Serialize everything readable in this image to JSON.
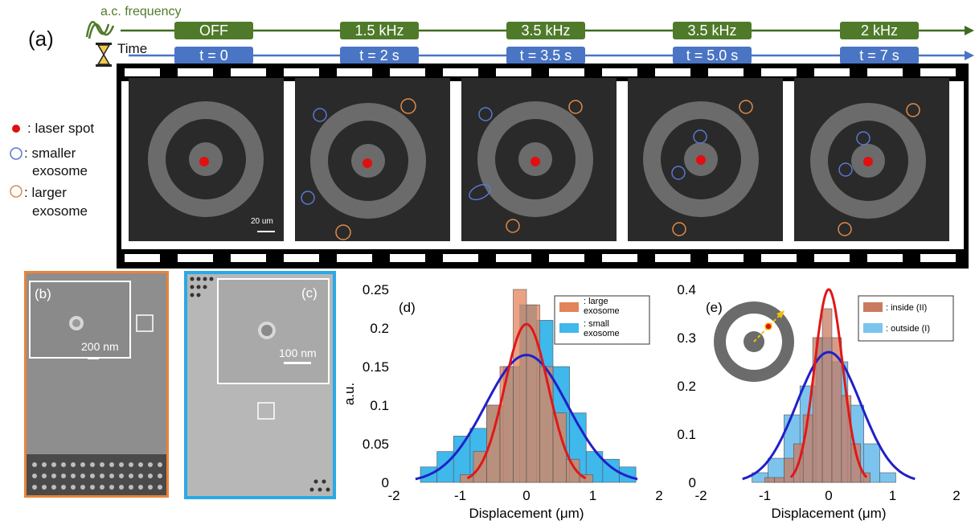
{
  "panel_a": {
    "label": "(a)",
    "freq_label": "a.c. frequency",
    "time_label": "Time",
    "freq_values": [
      "OFF",
      "1.5 kHz",
      "3.5 kHz",
      "3.5 kHz",
      "2 kHz"
    ],
    "time_values": [
      "t = 0",
      "t = 2 s",
      "t = 3.5 s",
      "t = 5.0 s",
      "t = 7 s"
    ],
    "scale_bar": "20 um",
    "legend": {
      "laser": ": laser spot",
      "small_1": ": smaller",
      "small_2": "exosome",
      "large_1": ": larger",
      "large_2": "exosome"
    },
    "colors": {
      "green": "#4f7a2a",
      "blue": "#4a75c4",
      "laser": "#e01010",
      "small": "#5a79d0",
      "large": "#e08b4a"
    }
  },
  "panel_b": {
    "label": "(b)",
    "scale": "200 nm",
    "border_color": "#e8843a"
  },
  "panel_c": {
    "label": "(c)",
    "scale": "100 nm",
    "border_color": "#2aa9e6"
  },
  "chart_data": [
    {
      "type": "bar",
      "panel": "(d)",
      "xlabel": "Displacement (μm)",
      "ylabel": "a.u.",
      "xlim": [
        -2,
        2
      ],
      "ylim": [
        0,
        0.25
      ],
      "xticks": [
        "-2",
        "-1",
        "0",
        "1",
        "2"
      ],
      "yticks": [
        "0",
        "0.05",
        "0.1",
        "0.15",
        "0.2",
        "0.25"
      ],
      "legend_position": "top-right",
      "series": [
        {
          "name": ": small exosome",
          "color": "#3fb8ec",
          "bin_edges": [
            -1.6,
            -1.35,
            -1.1,
            -0.85,
            -0.6,
            -0.35,
            -0.1,
            0.15,
            0.4,
            0.65,
            0.9,
            1.15,
            1.4,
            1.65
          ],
          "values": [
            0.02,
            0.04,
            0.06,
            0.07,
            0.1,
            0.15,
            0.23,
            0.21,
            0.15,
            0.09,
            0.04,
            0.03,
            0.02
          ]
        },
        {
          "name": ": large exosome",
          "color": "#e3835a",
          "bin_edges": [
            -1.0,
            -0.8,
            -0.6,
            -0.4,
            -0.2,
            0,
            0.2,
            0.4,
            0.6,
            0.8,
            1.0
          ],
          "values": [
            0.01,
            0.04,
            0.1,
            0.15,
            0.25,
            0.23,
            0.15,
            0.09,
            0.03,
            0.01
          ]
        },
        {
          "name": "fit small",
          "color": "#2020c8",
          "type": "gaussian",
          "amplitude": 0.165,
          "mu": 0,
          "sigma": 0.62
        },
        {
          "name": "fit large",
          "color": "#e01818",
          "type": "gaussian",
          "amplitude": 0.205,
          "mu": 0,
          "sigma": 0.33
        }
      ],
      "legend": [
        ": large exosome",
        ": small exosome"
      ]
    },
    {
      "type": "bar",
      "panel": "(e)",
      "xlabel": "Displacement (μm)",
      "ylabel": "a.u.",
      "xlim": [
        -2,
        2
      ],
      "ylim": [
        0,
        0.4
      ],
      "xticks": [
        "-2",
        "-1",
        "0",
        "1",
        "2"
      ],
      "yticks": [
        "0",
        "0.1",
        "0.2",
        "0.3",
        "0.4"
      ],
      "legend_position": "top-right",
      "series": [
        {
          "name": ": outside (I)",
          "color": "#7cc4ee",
          "bin_edges": [
            -1.2,
            -0.95,
            -0.7,
            -0.45,
            -0.2,
            0.05,
            0.3,
            0.55,
            0.8,
            1.05
          ],
          "values": [
            0.02,
            0.05,
            0.14,
            0.2,
            0.3,
            0.25,
            0.16,
            0.08,
            0.02
          ]
        },
        {
          "name": ": inside (II)",
          "color": "#c97b60",
          "bin_edges": [
            -1.0,
            -0.85,
            -0.7,
            -0.55,
            -0.4,
            -0.25,
            -0.1,
            0.05,
            0.2,
            0.35,
            0.5,
            0.65
          ],
          "values": [
            0.01,
            0.01,
            0.05,
            0.08,
            0.14,
            0.3,
            0.36,
            0.3,
            0.18,
            0.08,
            0.02
          ]
        },
        {
          "name": "fit outside",
          "color": "#2020c8",
          "type": "gaussian",
          "amplitude": 0.27,
          "mu": 0,
          "sigma": 0.5
        },
        {
          "name": "fit inside",
          "color": "#e01818",
          "type": "gaussian",
          "amplitude": 0.4,
          "mu": 0,
          "sigma": 0.22
        }
      ],
      "legend": [
        ": inside (II)",
        ": outside (I)"
      ]
    }
  ]
}
